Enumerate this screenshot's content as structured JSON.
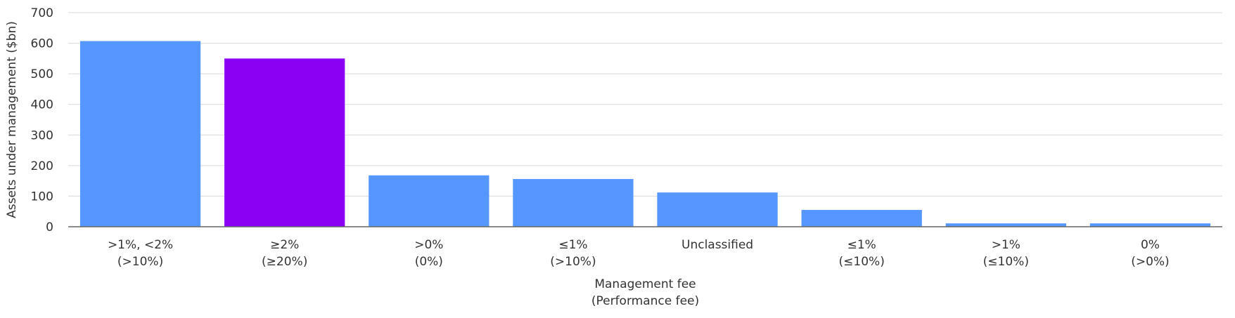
{
  "chart_data": {
    "type": "bar",
    "categories": [
      [
        ">1%, <2%",
        "(>10%)"
      ],
      [
        "≥2%",
        "(≥20%)"
      ],
      [
        ">0%",
        "(0%)"
      ],
      [
        "≤1%",
        "(>10%)"
      ],
      [
        "Unclassified",
        ""
      ],
      [
        "≤1%",
        "(≤10%)"
      ],
      [
        ">1%",
        "(≤10%)"
      ],
      [
        "0%",
        "(>0%)"
      ]
    ],
    "values": [
      607,
      550,
      168,
      156,
      112,
      55,
      11,
      11
    ],
    "highlight_index": 1,
    "colors": {
      "default": "#5596ff",
      "highlight": "#8b00f3",
      "grid": "#d9d9d9",
      "axis": "#666666"
    },
    "ylabel": "Assets under management ($bn)",
    "xlabel": [
      "Management fee",
      "(Performance fee)"
    ],
    "ylim": [
      0,
      700
    ],
    "yticks": [
      0,
      100,
      200,
      300,
      400,
      500,
      600,
      700
    ],
    "grid": true
  }
}
